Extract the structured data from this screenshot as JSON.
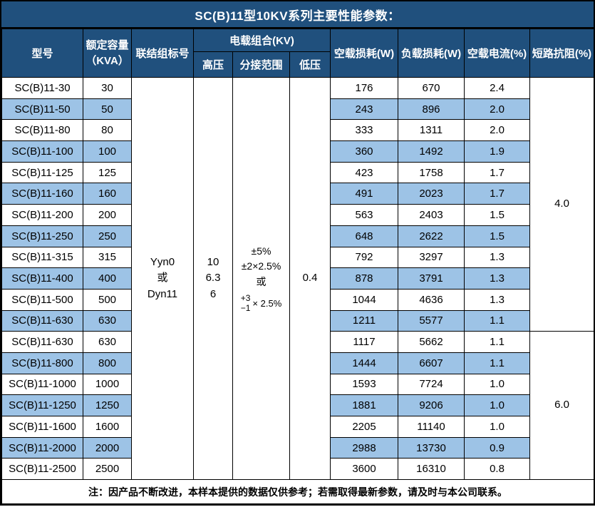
{
  "title": "SC(B)11型10KV系列主要性能参数：",
  "header": {
    "model": "型号",
    "capacity_line1": "额定容量",
    "capacity_line2": "（KVA）",
    "connection": "联结组标号",
    "load_combo": "电载组合(KV)",
    "hv": "高压",
    "tap_range": "分接范围",
    "lv": "低压",
    "no_load_loss": "空载损耗(W)",
    "load_loss": "负载损耗(W)",
    "no_load_current": "空载电流(%)",
    "impedance": "短路抗阻(%)"
  },
  "merged": {
    "connection_lines": [
      "Yyn0",
      "或",
      "Dyn11"
    ],
    "hv_lines": [
      "10",
      "6.3",
      "6"
    ],
    "tap_lines": [
      "±5%",
      "±2×2.5%",
      "或"
    ],
    "tap_stack_top": "+3",
    "tap_stack_bottom": "−1",
    "tap_stack_suffix": "× 2.5%",
    "lv": "0.4",
    "impedance_groups": [
      {
        "value": "4.0",
        "rows": 12
      },
      {
        "value": "6.0",
        "rows": 7
      }
    ]
  },
  "rows": [
    {
      "model": "SC(B)11-30",
      "capacity": "30",
      "no_load_loss": "176",
      "load_loss": "670",
      "no_load_current": "2.4"
    },
    {
      "model": "SC(B)11-50",
      "capacity": "50",
      "no_load_loss": "243",
      "load_loss": "896",
      "no_load_current": "2.0"
    },
    {
      "model": "SC(B)11-80",
      "capacity": "80",
      "no_load_loss": "333",
      "load_loss": "1311",
      "no_load_current": "2.0"
    },
    {
      "model": "SC(B)11-100",
      "capacity": "100",
      "no_load_loss": "360",
      "load_loss": "1492",
      "no_load_current": "1.9"
    },
    {
      "model": "SC(B)11-125",
      "capacity": "125",
      "no_load_loss": "423",
      "load_loss": "1758",
      "no_load_current": "1.7"
    },
    {
      "model": "SC(B)11-160",
      "capacity": "160",
      "no_load_loss": "491",
      "load_loss": "2023",
      "no_load_current": "1.7"
    },
    {
      "model": "SC(B)11-200",
      "capacity": "200",
      "no_load_loss": "563",
      "load_loss": "2403",
      "no_load_current": "1.5"
    },
    {
      "model": "SC(B)11-250",
      "capacity": "250",
      "no_load_loss": "648",
      "load_loss": "2622",
      "no_load_current": "1.5"
    },
    {
      "model": "SC(B)11-315",
      "capacity": "315",
      "no_load_loss": "792",
      "load_loss": "3297",
      "no_load_current": "1.3"
    },
    {
      "model": "SC(B)11-400",
      "capacity": "400",
      "no_load_loss": "878",
      "load_loss": "3791",
      "no_load_current": "1.3"
    },
    {
      "model": "SC(B)11-500",
      "capacity": "500",
      "no_load_loss": "1044",
      "load_loss": "4636",
      "no_load_current": "1.3"
    },
    {
      "model": "SC(B)11-630",
      "capacity": "630",
      "no_load_loss": "1211",
      "load_loss": "5577",
      "no_load_current": "1.1"
    },
    {
      "model": "SC(B)11-630",
      "capacity": "630",
      "no_load_loss": "1117",
      "load_loss": "5662",
      "no_load_current": "1.1"
    },
    {
      "model": "SC(B)11-800",
      "capacity": "800",
      "no_load_loss": "1444",
      "load_loss": "6607",
      "no_load_current": "1.1"
    },
    {
      "model": "SC(B)11-1000",
      "capacity": "1000",
      "no_load_loss": "1593",
      "load_loss": "7724",
      "no_load_current": "1.0"
    },
    {
      "model": "SC(B)11-1250",
      "capacity": "1250",
      "no_load_loss": "1881",
      "load_loss": "9206",
      "no_load_current": "1.0"
    },
    {
      "model": "SC(B)11-1600",
      "capacity": "1600",
      "no_load_loss": "2205",
      "load_loss": "11140",
      "no_load_current": "1.0"
    },
    {
      "model": "SC(B)11-2000",
      "capacity": "2000",
      "no_load_loss": "2988",
      "load_loss": "13730",
      "no_load_current": "0.9"
    },
    {
      "model": "SC(B)11-2500",
      "capacity": "2500",
      "no_load_loss": "3600",
      "load_loss": "16310",
      "no_load_current": "0.8"
    }
  ],
  "footer": {
    "note": "注：因产品不断改进，本样本提供的数据仅供参考；若需取得最新参数，请及时与本公司联系。"
  },
  "colors": {
    "header_bg": "#20507D",
    "stripe_bg": "#9DC3E6",
    "header_text": "#FFFFFF",
    "border": "#000000"
  }
}
